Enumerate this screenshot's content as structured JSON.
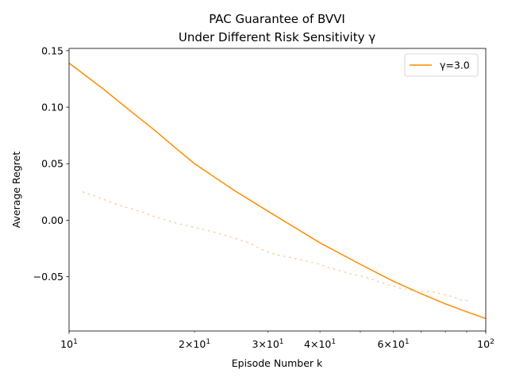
{
  "chart_data": {
    "type": "line",
    "title": "PAC Guarantee of BVVI",
    "subtitle": "Under Different Risk Sensitivity  γ",
    "xlabel": "Episode Number k",
    "ylabel": "Average Regret",
    "xscale": "log",
    "xlim": [
      10,
      100
    ],
    "ylim": [
      -0.098,
      0.152
    ],
    "grid": false,
    "legend_position": "top-right",
    "x_major_ticks": [
      {
        "value": 10,
        "base": "10",
        "exp": "1"
      },
      {
        "value": 100,
        "base": "10",
        "exp": "2"
      }
    ],
    "x_minor_labeled_ticks": [
      {
        "value": 20,
        "base": "2×10",
        "exp": "1"
      },
      {
        "value": 30,
        "base": "3×10",
        "exp": "1"
      },
      {
        "value": 40,
        "base": "4×10",
        "exp": "1"
      },
      {
        "value": 60,
        "base": "6×10",
        "exp": "1"
      }
    ],
    "x_minor_unlabeled_ticks": [
      50,
      70,
      80,
      90
    ],
    "y_ticks": [
      {
        "value": 0.15,
        "label": "0.15"
      },
      {
        "value": 0.1,
        "label": "0.10"
      },
      {
        "value": 0.05,
        "label": "0.05"
      },
      {
        "value": 0.0,
        "label": "0.00"
      },
      {
        "value": -0.05,
        "label": "−0.05"
      }
    ],
    "series": [
      {
        "name": "γ=3.0",
        "style": "solid",
        "color": "#ff8c00",
        "x": [
          10,
          12,
          14,
          16,
          18,
          20,
          25,
          30,
          35,
          40,
          50,
          60,
          70,
          80,
          90,
          100
        ],
        "y": [
          0.139,
          0.117,
          0.097,
          0.08,
          0.064,
          0.05,
          0.026,
          0.008,
          -0.007,
          -0.02,
          -0.039,
          -0.054,
          -0.065,
          -0.074,
          -0.081,
          -0.087
        ]
      },
      {
        "style": "dotted",
        "color": "#ffb366",
        "x": [
          10.8,
          11.8,
          12.8,
          13.8,
          14.8,
          15.8,
          16.8,
          17.8,
          18.8,
          19.8,
          21,
          22,
          23,
          24,
          25,
          26,
          27,
          28,
          29,
          30,
          31,
          32,
          33,
          34,
          35,
          36,
          37,
          38,
          39,
          40,
          42,
          44,
          46,
          48,
          50,
          52,
          54,
          56,
          58,
          60,
          62,
          64,
          66,
          68,
          70,
          72,
          74,
          76,
          78,
          80,
          82,
          84,
          86,
          88,
          90,
          92
        ],
        "y": [
          0.025,
          0.02,
          0.015,
          0.011,
          0.008,
          0.004,
          0.001,
          -0.002,
          -0.004,
          -0.006,
          -0.008,
          -0.01,
          -0.012,
          -0.014,
          -0.016,
          -0.018,
          -0.02,
          -0.023,
          -0.026,
          -0.028,
          -0.03,
          -0.031,
          -0.032,
          -0.033,
          -0.034,
          -0.035,
          -0.036,
          -0.037,
          -0.038,
          -0.039,
          -0.042,
          -0.044,
          -0.046,
          -0.048,
          -0.049,
          -0.051,
          -0.053,
          -0.055,
          -0.057,
          -0.058,
          -0.06,
          -0.061,
          -0.062,
          -0.063,
          -0.063,
          -0.063,
          -0.063,
          -0.064,
          -0.065,
          -0.066,
          -0.067,
          -0.068,
          -0.07,
          -0.071,
          -0.071,
          -0.071
        ]
      }
    ]
  }
}
